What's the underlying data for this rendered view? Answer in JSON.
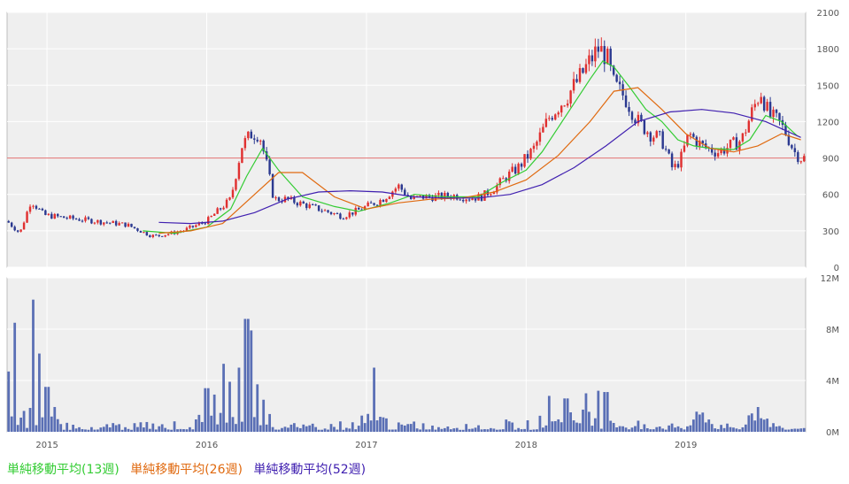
{
  "chart_data": [
    {
      "type": "candlestick",
      "panel": "price",
      "ylim": [
        0,
        2100
      ],
      "yticks": [
        0,
        300,
        600,
        900,
        1200,
        1500,
        1800,
        2100
      ],
      "x_range": [
        2014.75,
        2019.75
      ],
      "xticks": [
        2015,
        2016,
        2017,
        2018,
        2019
      ],
      "reference_line": 900,
      "grid": true,
      "colors": {
        "up": "#e03030",
        "down": "#2b3990",
        "reference": "#e07070"
      },
      "close_series": {
        "x": [
          2014.75,
          2014.83,
          2014.9,
          2014.98,
          2015.1,
          2015.3,
          2015.5,
          2015.65,
          2015.7,
          2015.85,
          2016.0,
          2016.15,
          2016.22,
          2016.28,
          2016.33,
          2016.38,
          2016.42,
          2016.5,
          2016.6,
          2016.75,
          2016.85,
          2016.95,
          2017.1,
          2017.2,
          2017.28,
          2017.35,
          2017.45,
          2017.55,
          2017.65,
          2017.72,
          2017.8,
          2017.88,
          2017.95,
          2018.05,
          2018.15,
          2018.25,
          2018.33,
          2018.4,
          2018.45,
          2018.5,
          2018.55,
          2018.62,
          2018.7,
          2018.78,
          2018.85,
          2018.92,
          2018.97,
          2019.02,
          2019.1,
          2019.2,
          2019.28,
          2019.35,
          2019.42,
          2019.47,
          2019.52,
          2019.58,
          2019.63,
          2019.68,
          2019.72
        ],
        "y": [
          380,
          280,
          550,
          430,
          410,
          380,
          350,
          260,
          260,
          300,
          380,
          560,
          1000,
          1100,
          1100,
          820,
          560,
          560,
          520,
          460,
          420,
          470,
          560,
          670,
          560,
          580,
          580,
          590,
          570,
          580,
          650,
          750,
          820,
          980,
          1250,
          1400,
          1550,
          1700,
          1800,
          1750,
          1500,
          1400,
          1200,
          1100,
          1050,
          800,
          900,
          1100,
          1000,
          950,
          1000,
          1050,
          1300,
          1450,
          1250,
          1200,
          1100,
          950,
          900
        ]
      },
      "series": [
        {
          "name": "単純移動平均(13週)",
          "color": "#33cc33",
          "x": [
            2015.6,
            2015.8,
            2016.0,
            2016.15,
            2016.25,
            2016.35,
            2016.45,
            2016.6,
            2016.8,
            2016.95,
            2017.15,
            2017.3,
            2017.5,
            2017.7,
            2017.85,
            2018.0,
            2018.1,
            2018.2,
            2018.3,
            2018.4,
            2018.48,
            2018.55,
            2018.65,
            2018.75,
            2018.85,
            2018.95,
            2019.05,
            2019.15,
            2019.3,
            2019.4,
            2019.5,
            2019.6,
            2019.7
          ],
          "y": [
            300,
            280,
            330,
            480,
            750,
            980,
            800,
            580,
            500,
            460,
            530,
            600,
            580,
            580,
            700,
            800,
            950,
            1150,
            1350,
            1550,
            1700,
            1650,
            1480,
            1300,
            1200,
            1050,
            1000,
            980,
            970,
            1050,
            1250,
            1200,
            1080
          ]
        },
        {
          "name": "単純移動平均(26週)",
          "color": "#e06a10",
          "x": [
            2015.7,
            2015.9,
            2016.1,
            2016.3,
            2016.45,
            2016.6,
            2016.8,
            2017.0,
            2017.2,
            2017.4,
            2017.6,
            2017.8,
            2018.0,
            2018.2,
            2018.4,
            2018.55,
            2018.7,
            2018.85,
            2019.0,
            2019.15,
            2019.3,
            2019.45,
            2019.6,
            2019.72
          ],
          "y": [
            280,
            300,
            360,
            600,
            780,
            780,
            580,
            480,
            530,
            560,
            570,
            620,
            720,
            920,
            1200,
            1450,
            1480,
            1300,
            1100,
            980,
            950,
            1000,
            1100,
            1050
          ]
        },
        {
          "name": "単純移動平均(52週)",
          "color": "#4020b0",
          "x": [
            2015.7,
            2015.9,
            2016.1,
            2016.3,
            2016.5,
            2016.7,
            2016.9,
            2017.1,
            2017.3,
            2017.5,
            2017.7,
            2017.9,
            2018.1,
            2018.3,
            2018.5,
            2018.7,
            2018.9,
            2019.1,
            2019.3,
            2019.5,
            2019.72
          ],
          "y": [
            370,
            360,
            380,
            450,
            560,
            620,
            630,
            620,
            580,
            570,
            570,
            600,
            680,
            820,
            1000,
            1200,
            1280,
            1300,
            1270,
            1200,
            1070
          ]
        }
      ]
    },
    {
      "type": "bar",
      "panel": "volume",
      "ylim": [
        0,
        12
      ],
      "yticks": [
        0,
        4,
        8,
        12
      ],
      "ytick_labels": [
        "0M",
        "4M",
        "8M",
        "12M"
      ],
      "unit": "M",
      "color": "#5a6fb5",
      "spikes": {
        "x": [
          2014.75,
          2014.8,
          2014.92,
          2014.95,
          2015.0,
          2016.0,
          2016.05,
          2016.1,
          2016.15,
          2016.2,
          2016.25,
          2016.28,
          2016.32,
          2016.35,
          2017.05,
          2018.15,
          2018.25,
          2018.38,
          2018.45,
          2018.5,
          2019.1,
          2019.45
        ],
        "y": [
          4.7,
          8.5,
          10.3,
          6.1,
          3.5,
          3.4,
          2.9,
          5.3,
          3.9,
          5.0,
          8.8,
          7.9,
          3.7,
          2.5,
          5.0,
          2.8,
          2.6,
          3.0,
          3.2,
          3.1,
          1.5,
          1.3
        ]
      }
    }
  ],
  "legend": [
    {
      "label": "単純移動平均(13週)",
      "color": "#33cc33"
    },
    {
      "label": "単純移動平均(26週)",
      "color": "#e06a10"
    },
    {
      "label": "単純移動平均(52週)",
      "color": "#4020b0"
    }
  ]
}
